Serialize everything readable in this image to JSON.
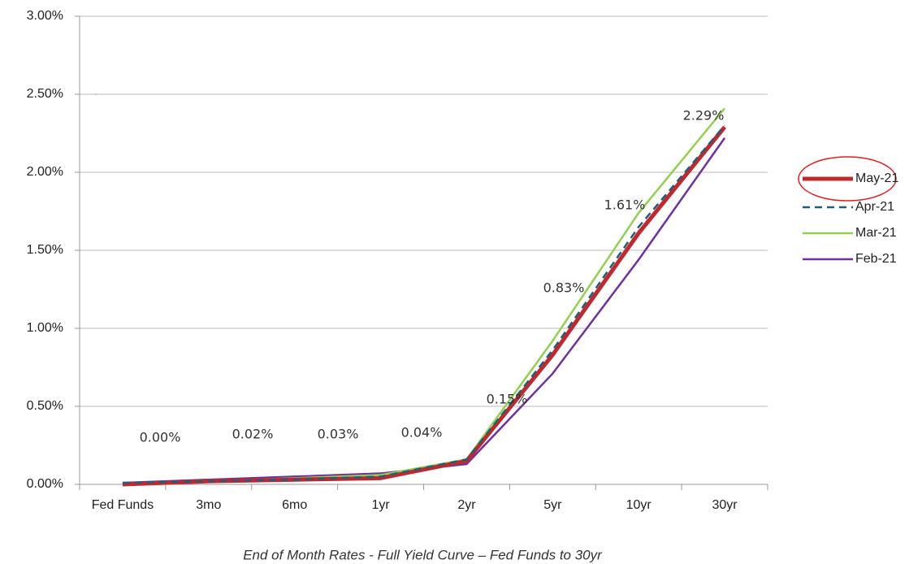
{
  "chart_data": {
    "type": "line",
    "title": "End of Month Rates - Full Yield Curve – Fed Funds to 30yr",
    "categories": [
      "Fed Funds",
      "3mo",
      "6mo",
      "1yr",
      "2yr",
      "5yr",
      "10yr",
      "30yr"
    ],
    "series": [
      {
        "name": "May-21",
        "color": "#c0282d",
        "values": [
          0.0,
          0.02,
          0.03,
          0.04,
          0.15,
          0.83,
          1.61,
          2.29
        ],
        "value_labels": [
          "0.00%",
          "0.02%",
          "0.03%",
          "0.04%",
          "0.15%",
          "0.83%",
          "1.61%",
          "2.29%"
        ]
      },
      {
        "name": "Apr-21",
        "color": "#1f5f7a",
        "line_style": "dashed",
        "values": [
          0.01,
          0.02,
          0.03,
          0.05,
          0.16,
          0.86,
          1.65,
          2.3
        ]
      },
      {
        "name": "Mar-21",
        "color": "#92d050",
        "values": [
          0.0,
          0.02,
          0.04,
          0.06,
          0.16,
          0.92,
          1.74,
          2.41
        ]
      },
      {
        "name": "Feb-21",
        "color": "#7030a0",
        "values": [
          0.01,
          0.03,
          0.05,
          0.07,
          0.13,
          0.71,
          1.44,
          2.22
        ]
      }
    ],
    "ylim": [
      0,
      3
    ],
    "yticks": [
      {
        "value": 0,
        "label": "0.00%"
      },
      {
        "value": 0.5,
        "label": "0.50%"
      },
      {
        "value": 1,
        "label": "1.00%"
      },
      {
        "value": 1.5,
        "label": "1.50%"
      },
      {
        "value": 2,
        "label": "2.00%"
      },
      {
        "value": 2.5,
        "label": "2.50%"
      },
      {
        "value": 3,
        "label": "3.00%"
      }
    ],
    "grid": true,
    "legend": "right"
  }
}
